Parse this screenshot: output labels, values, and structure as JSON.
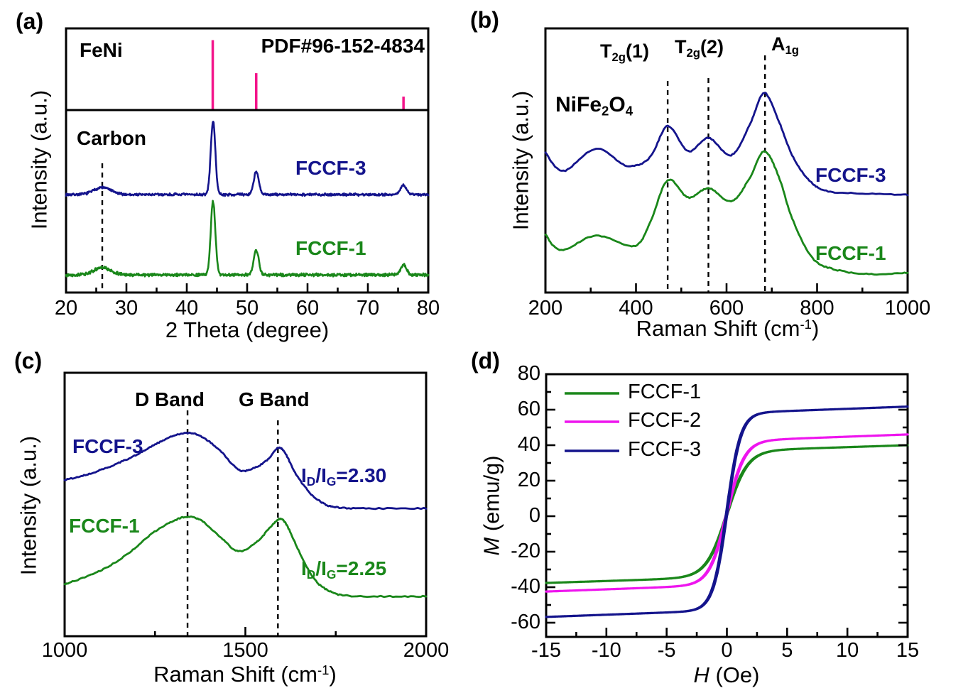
{
  "colors": {
    "navy": "#14148C",
    "green": "#1A871A",
    "magenta": "#EE15EE",
    "pink": "#F3158A",
    "axis": "#000000",
    "background": "#FFFFFF"
  },
  "panel_letters": [
    "(a)",
    "(b)",
    "(c)",
    "(d)"
  ],
  "chart_data": [
    {
      "panel": "a",
      "type": "line",
      "kind": "xrd",
      "title_annotations": {
        "phase": "FeNi",
        "pdf_card": "PDF#96-152-4834",
        "carbon": "Carbon"
      },
      "xlabel": "2 Theta (degree)",
      "ylabel": "Intensity (a.u.)",
      "xlim": [
        20,
        80
      ],
      "xticks": [
        20,
        30,
        40,
        50,
        60,
        70,
        80
      ],
      "xminor": [
        25,
        35,
        45,
        55,
        65,
        75
      ],
      "grid": false,
      "carbon_dashed_line_x": 26,
      "reference": {
        "name": "FeNi",
        "color_key": "pink",
        "peaks": [
          {
            "two_theta": 44.3,
            "rel_intensity": 100
          },
          {
            "two_theta": 51.5,
            "rel_intensity": 52
          },
          {
            "two_theta": 75.9,
            "rel_intensity": 18
          }
        ]
      },
      "series": [
        {
          "name": "FCCF-3",
          "color_key": "navy",
          "baseline_au": 37.1,
          "noise_au": 0.55,
          "seed": 7,
          "peaks": [
            {
              "center": 26,
              "height_au": 2.7,
              "width": 1.4
            },
            {
              "center": 44.35,
              "height_au": 27.7,
              "width": 0.38
            },
            {
              "center": 51.5,
              "height_au": 8.6,
              "width": 0.42
            },
            {
              "center": 75.9,
              "height_au": 3.5,
              "width": 0.5
            }
          ]
        },
        {
          "name": "FCCF-1",
          "color_key": "green",
          "baseline_au": 6.7,
          "noise_au": 0.65,
          "seed": 13,
          "peaks": [
            {
              "center": 26,
              "height_au": 2.7,
              "width": 1.4
            },
            {
              "center": 44.35,
              "height_au": 27.7,
              "width": 0.38
            },
            {
              "center": 51.5,
              "height_au": 9.4,
              "width": 0.42
            },
            {
              "center": 75.9,
              "height_au": 3.8,
              "width": 0.5
            }
          ]
        }
      ]
    },
    {
      "panel": "b",
      "type": "line",
      "kind": "raman",
      "material_label": {
        "parts": [
          "NiFe",
          "2",
          "O",
          "4"
        ]
      },
      "mode_labels": [
        {
          "parts": [
            "T",
            "2g",
            "(1)"
          ],
          "x": 470
        },
        {
          "parts": [
            "T",
            "2g",
            "(2)"
          ],
          "x": 560
        },
        {
          "parts": [
            "A",
            "1g"
          ],
          "x": 685
        }
      ],
      "dashed_lines_x": [
        470,
        560,
        685
      ],
      "xlabel_parts": [
        "Raman Shift (cm",
        "-1",
        ")"
      ],
      "ylabel": "Intensity (a.u.)",
      "xlim": [
        200,
        1000
      ],
      "xticks": [
        200,
        400,
        600,
        800,
        1000
      ],
      "xminor": [
        300,
        500,
        700,
        900
      ],
      "grid": false,
      "series": [
        {
          "name": "FCCF-3",
          "color_key": "navy",
          "seed": 21,
          "points": [
            [
              200,
              53
            ],
            [
              240,
              46
            ],
            [
              312,
              54.5
            ],
            [
              380,
              48
            ],
            [
              430,
              51
            ],
            [
              470,
              63
            ],
            [
              515,
              53.5
            ],
            [
              560,
              58.5
            ],
            [
              610,
              52
            ],
            [
              650,
              63
            ],
            [
              683,
              75.5
            ],
            [
              715,
              65
            ],
            [
              745,
              52
            ],
            [
              780,
              43
            ],
            [
              820,
              38.5
            ],
            [
              900,
              37.5
            ],
            [
              1000,
              37
            ]
          ]
        },
        {
          "name": "FCCF-1",
          "color_key": "green",
          "seed": 22,
          "points": [
            [
              200,
              22
            ],
            [
              235,
              16
            ],
            [
              312,
              21.5
            ],
            [
              395,
              17.5
            ],
            [
              430,
              26
            ],
            [
              470,
              42.5
            ],
            [
              515,
              36
            ],
            [
              560,
              39.5
            ],
            [
              610,
              34.5
            ],
            [
              650,
              43
            ],
            [
              683,
              53.5
            ],
            [
              715,
              44
            ],
            [
              745,
              28
            ],
            [
              790,
              13
            ],
            [
              845,
              8.5
            ],
            [
              920,
              7
            ],
            [
              1000,
              7.5
            ]
          ]
        }
      ]
    },
    {
      "panel": "c",
      "type": "line",
      "kind": "raman-carbon",
      "band_labels": [
        {
          "text": "D Band",
          "x": 1340
        },
        {
          "text": "G Band",
          "x": 1590
        }
      ],
      "dashed_lines_x": [
        1340,
        1590
      ],
      "ratio_labels": [
        {
          "parts": [
            "I",
            "D",
            "/I",
            "G",
            "=2.30"
          ],
          "color_key": "navy"
        },
        {
          "parts": [
            "I",
            "D",
            "/I",
            "G",
            "=2.25"
          ],
          "color_key": "green"
        }
      ],
      "xlabel_parts": [
        "Raman Shift (cm",
        "-1",
        ")"
      ],
      "ylabel": "Intensity (a.u.)",
      "xlim": [
        1000,
        2000
      ],
      "xticks": [
        1000,
        1500,
        2000
      ],
      "xminor": [
        1250,
        1750
      ],
      "grid": false,
      "series": [
        {
          "name": "FCCF-3",
          "color_key": "navy",
          "seed": 31,
          "points": [
            [
              1000,
              59.3
            ],
            [
              1050,
              60.9
            ],
            [
              1100,
              63.1
            ],
            [
              1150,
              65.8
            ],
            [
              1200,
              69
            ],
            [
              1250,
              72.8
            ],
            [
              1300,
              76
            ],
            [
              1340,
              77.1
            ],
            [
              1380,
              75.7
            ],
            [
              1430,
              70.4
            ],
            [
              1480,
              63.3
            ],
            [
              1520,
              63.6
            ],
            [
              1560,
              66.8
            ],
            [
              1590,
              71.4
            ],
            [
              1610,
              69.5
            ],
            [
              1640,
              61.5
            ],
            [
              1680,
              54.2
            ],
            [
              1720,
              50.1
            ],
            [
              1760,
              48.8
            ],
            [
              1850,
              48.5
            ],
            [
              2000,
              48.5
            ]
          ]
        },
        {
          "name": "FCCF-1",
          "color_key": "green",
          "seed": 32,
          "points": [
            [
              1000,
              19.7
            ],
            [
              1060,
              22.6
            ],
            [
              1120,
              26.4
            ],
            [
              1180,
              31.8
            ],
            [
              1240,
              38.8
            ],
            [
              1300,
              43.7
            ],
            [
              1340,
              45.3
            ],
            [
              1380,
              43.7
            ],
            [
              1430,
              37.7
            ],
            [
              1480,
              32.3
            ],
            [
              1530,
              35.6
            ],
            [
              1570,
              41.5
            ],
            [
              1595,
              44.5
            ],
            [
              1615,
              42
            ],
            [
              1650,
              31.8
            ],
            [
              1690,
              21.8
            ],
            [
              1730,
              17.3
            ],
            [
              1780,
              15.4
            ],
            [
              1900,
              15.1
            ],
            [
              2000,
              15.1
            ]
          ]
        }
      ]
    },
    {
      "panel": "d",
      "type": "line",
      "kind": "hysteresis",
      "xlabel_parts": [
        "H",
        " (Oe)"
      ],
      "ylabel_parts": [
        "M",
        " (emu/g)"
      ],
      "xlim": [
        -15,
        15
      ],
      "ylim": [
        -68,
        80
      ],
      "xticks": [
        -15,
        -10,
        -5,
        0,
        5,
        10,
        15
      ],
      "xminor": [
        -12.5,
        -7.5,
        -2.5,
        2.5,
        7.5,
        12.5
      ],
      "yticks": [
        80,
        60,
        40,
        20,
        0,
        -20,
        -40,
        -60
      ],
      "yminor": [
        70,
        50,
        30,
        10,
        -10,
        -30,
        -50
      ],
      "grid": false,
      "legend": {
        "position": "top-left",
        "entries": [
          "FCCF-1",
          "FCCF-2",
          "FCCF-3"
        ]
      },
      "series": [
        {
          "name": "FCCF-1",
          "color_key": "green",
          "saturation_pos": 40,
          "saturation_neg": -37.5,
          "amp": 35.5,
          "offset": 1.2,
          "slope": 0.22,
          "width": 1.7,
          "coercivity": 0.05
        },
        {
          "name": "FCCF-2",
          "color_key": "magenta",
          "saturation_pos": 46,
          "saturation_neg": -42,
          "amp": 40.5,
          "offset": 1.8,
          "slope": 0.25,
          "width": 1.45,
          "coercivity": 0.05
        },
        {
          "name": "FCCF-3",
          "color_key": "navy",
          "saturation_pos": 62,
          "saturation_neg": -56.5,
          "amp": 55.5,
          "offset": 2.5,
          "slope": 0.25,
          "width": 1.15,
          "coercivity": 0.05
        }
      ]
    }
  ]
}
